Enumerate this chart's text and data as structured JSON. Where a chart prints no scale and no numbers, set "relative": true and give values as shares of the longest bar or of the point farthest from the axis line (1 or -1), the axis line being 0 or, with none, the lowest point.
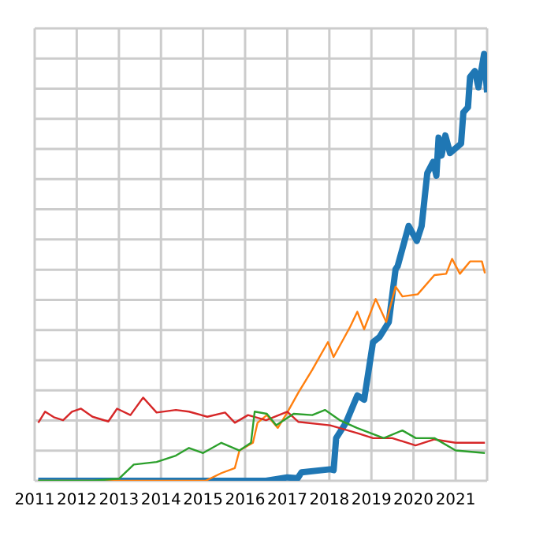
{
  "chart_data": {
    "type": "line",
    "relative": true,
    "grid": true,
    "xlim": [
      "2011-01-01",
      "2021-10-01"
    ],
    "xticks": [
      {
        "value": "2011-01-01",
        "label": "2011"
      },
      {
        "value": "2012-01-01",
        "label": "2012"
      },
      {
        "value": "2013-01-01",
        "label": "2013"
      },
      {
        "value": "2014-01-01",
        "label": "2014"
      },
      {
        "value": "2015-01-01",
        "label": "2015"
      },
      {
        "value": "2016-01-01",
        "label": "2016"
      },
      {
        "value": "2017-01-01",
        "label": "2017"
      },
      {
        "value": "2018-01-01",
        "label": "2018"
      },
      {
        "value": "2019-01-01",
        "label": "2019"
      },
      {
        "value": "2020-01-01",
        "label": "2020"
      },
      {
        "value": "2021-01-01",
        "label": "2021"
      }
    ],
    "series": [
      {
        "color": "#1f77b4",
        "x": [
          "2011-02-01",
          "2016-07-01",
          "2017-01-01",
          "2017-04-01",
          "2017-05-05",
          "2018-01-08",
          "2018-02-07",
          "2018-03-01",
          "2018-05-25",
          "2018-09-01",
          "2018-10-30",
          "2019-01-15",
          "2019-03-12",
          "2019-06-01",
          "2019-07-30",
          "2019-08-17",
          "2019-11-20",
          "2020-01-30",
          "2020-03-12",
          "2020-04-30",
          "2020-06-20",
          "2020-07-18",
          "2020-08-06",
          "2020-09-01",
          "2020-10-04",
          "2020-11-13",
          "2021-02-17",
          "2021-03-09",
          "2021-04-18",
          "2021-05-06",
          "2021-06-16",
          "2021-07-18",
          "2021-09-05",
          "2021-10-01"
        ],
        "values": [
          0,
          0,
          0.008,
          0.006,
          0.02,
          0.027,
          0.025,
          0.1,
          0.136,
          0.2,
          0.19,
          0.325,
          0.337,
          0.372,
          0.496,
          0.503,
          0.597,
          0.562,
          0.597,
          0.721,
          0.747,
          0.715,
          0.804,
          0.762,
          0.809,
          0.768,
          0.79,
          0.863,
          0.875,
          0.946,
          0.96,
          0.922,
          1,
          0.91
        ]
      },
      {
        "color": "#ff7f0e",
        "x": [
          "2011-02-01",
          "2015-01-22",
          "2015-06-09",
          "2015-10-04",
          "2015-11-13",
          "2016-03-09",
          "2016-04-18",
          "2016-07-08",
          "2016-10-11",
          "2017-01-01",
          "2017-04-08",
          "2017-08-06",
          "2017-12-20",
          "2018-02-07",
          "2018-07-01",
          "2018-09-01",
          "2018-10-30",
          "2019-02-07",
          "2019-05-10",
          "2019-07-30",
          "2019-09-27",
          "2020-02-07",
          "2020-07-01",
          "2020-10-11",
          "2020-12-01",
          "2021-02-07",
          "2021-05-06",
          "2021-08-17",
          "2021-09-12"
        ],
        "values": [
          0,
          0,
          0.018,
          0.03,
          0.071,
          0.089,
          0.136,
          0.154,
          0.124,
          0.16,
          0.207,
          0.26,
          0.325,
          0.29,
          0.361,
          0.396,
          0.355,
          0.426,
          0.372,
          0.455,
          0.432,
          0.437,
          0.482,
          0.485,
          0.52,
          0.485,
          0.514,
          0.514,
          0.486
        ]
      },
      {
        "color": "#d62728",
        "x": [
          "2011-02-01",
          "2011-04-01",
          "2011-06-16",
          "2011-09-05",
          "2011-11-20",
          "2012-02-07",
          "2012-05-17",
          "2012-10-01",
          "2012-12-16",
          "2013-04-11",
          "2013-07-30",
          "2013-11-24",
          "2014-05-10",
          "2014-09-01",
          "2015-02-07",
          "2015-07-11",
          "2015-10-04",
          "2016-01-26",
          "2016-07-01",
          "2017-01-01",
          "2017-04-08",
          "2018-01-08",
          "2018-08-28",
          "2019-01-15",
          "2019-07-01",
          "2020-01-19",
          "2020-07-01",
          "2021-01-01",
          "2021-09-12"
        ],
        "values": [
          0.136,
          0.162,
          0.149,
          0.142,
          0.162,
          0.169,
          0.15,
          0.139,
          0.169,
          0.154,
          0.195,
          0.16,
          0.166,
          0.162,
          0.15,
          0.16,
          0.136,
          0.154,
          0.142,
          0.162,
          0.138,
          0.13,
          0.112,
          0.1,
          0.1,
          0.083,
          0.097,
          0.089,
          0.089
        ]
      },
      {
        "color": "#2ca02c",
        "x": [
          "2011-02-01",
          "2012-05-14",
          "2013-01-01",
          "2013-05-10",
          "2013-11-24",
          "2014-05-10",
          "2014-09-01",
          "2015-01-01",
          "2015-06-09",
          "2015-11-13",
          "2016-02-21",
          "2016-03-24",
          "2016-07-08",
          "2016-09-27",
          "2017-02-25",
          "2017-08-06",
          "2017-11-24",
          "2018-04-01",
          "2018-08-28",
          "2019-04-18",
          "2019-09-27",
          "2020-01-22",
          "2020-07-01",
          "2021-01-01",
          "2021-09-12"
        ],
        "values": [
          0,
          0,
          0.005,
          0.038,
          0.044,
          0.059,
          0.077,
          0.065,
          0.089,
          0.071,
          0.089,
          0.162,
          0.157,
          0.13,
          0.157,
          0.154,
          0.166,
          0.142,
          0.124,
          0.1,
          0.118,
          0.1,
          0.1,
          0.071,
          0.065
        ]
      }
    ]
  }
}
